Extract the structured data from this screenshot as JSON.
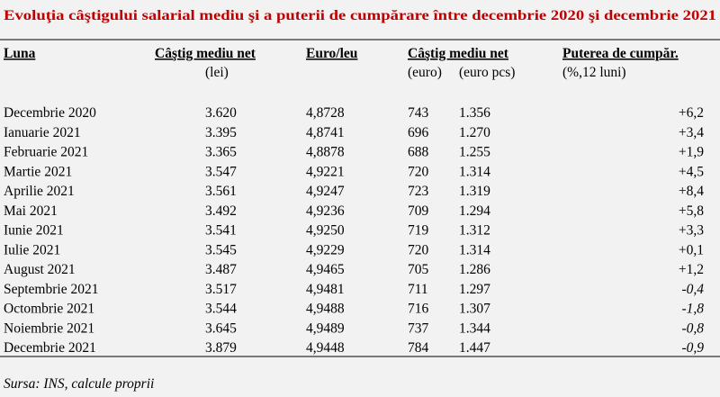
{
  "title": "Evoluţia câştigului salarial mediu şi a puterii de cumpărare între decembrie 2020 şi decembrie 2021",
  "table": {
    "header": [
      "Luna",
      "Câştig mediu net",
      "Euro/leu",
      "Câştig mediu net",
      "Puterea de cumpăr."
    ],
    "subheader": [
      "(lei)",
      "(euro)",
      "(euro pcs)",
      "(%,12 luni)"
    ],
    "rows": [
      [
        "Decembrie 2020",
        "3.620",
        "4,8728",
        "743",
        "1.356",
        "+6,2"
      ],
      [
        "Ianuarie 2021",
        "3.395",
        "4,8741",
        "696",
        "1.270",
        "+3,4"
      ],
      [
        "Februarie 2021",
        "3.365",
        "4,8878",
        "688",
        "1.255",
        "+1,9"
      ],
      [
        "Martie 2021",
        "3.547",
        "4,9221",
        "720",
        "1.314",
        "+4,5"
      ],
      [
        "Aprilie 2021",
        "3.561",
        "4,9247",
        "723",
        "1.319",
        "+8,4"
      ],
      [
        "Mai 2021",
        "3.492",
        "4,9236",
        "709",
        "1.294",
        "+5,8"
      ],
      [
        "Iunie 2021",
        "3.541",
        "4,9250",
        "719",
        "1.312",
        "+3,3"
      ],
      [
        "Iulie 2021",
        "3.545",
        "4,9229",
        "720",
        "1.314",
        "+0,1"
      ],
      [
        "August 2021",
        "3.487",
        "4,9465",
        "705",
        "1.286",
        "+1,2"
      ],
      [
        "Septembrie 2021",
        "3.517",
        "4,9481",
        "711",
        "1.297",
        "-0,4"
      ],
      [
        "Octombrie 2021",
        "3.544",
        "4,9488",
        "716",
        "1.307",
        "-1,8"
      ],
      [
        "Noiembrie 2021",
        "3.645",
        "4,9489",
        "737",
        "1.344",
        "-0,8"
      ],
      [
        "Decembrie 2021",
        "3.879",
        "4,9448",
        "784",
        "1.447",
        "-0,9"
      ]
    ]
  },
  "source": "Sursa: INS, calcule proprii"
}
